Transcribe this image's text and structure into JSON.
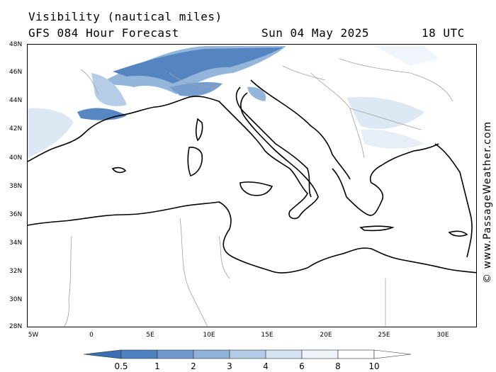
{
  "header": {
    "title": "Visibility (nautical miles)",
    "model_line": "GFS 084 Hour Forecast",
    "date": "Sun 04 May 2025",
    "time": "18 UTC"
  },
  "map": {
    "region": "Mediterranean",
    "lat_ticks": [
      "48N",
      "46N",
      "44N",
      "42N",
      "40N",
      "38N",
      "36N",
      "34N",
      "32N",
      "30N",
      "28N"
    ],
    "lon_ticks": [
      "5W",
      "0",
      "5E",
      "10E",
      "15E",
      "20E",
      "25E",
      "30E"
    ],
    "colors": {
      "coast": "#000000",
      "borders": "#a0a0a0",
      "low_vis": "#3f75b5",
      "mid_vis": "#8fb3da",
      "high_vis": "#dbe8f5"
    }
  },
  "watermark": "© www.PassageWeather.com",
  "colorbar": {
    "labels": [
      "0.5",
      "1",
      "2",
      "3",
      "4",
      "6",
      "8",
      "10"
    ],
    "colors": [
      "#3a6fb4",
      "#4f82c0",
      "#6e98cc",
      "#8fb2da",
      "#b2cbe6",
      "#d4e3f2",
      "#eef4fa",
      "#ffffff"
    ]
  }
}
